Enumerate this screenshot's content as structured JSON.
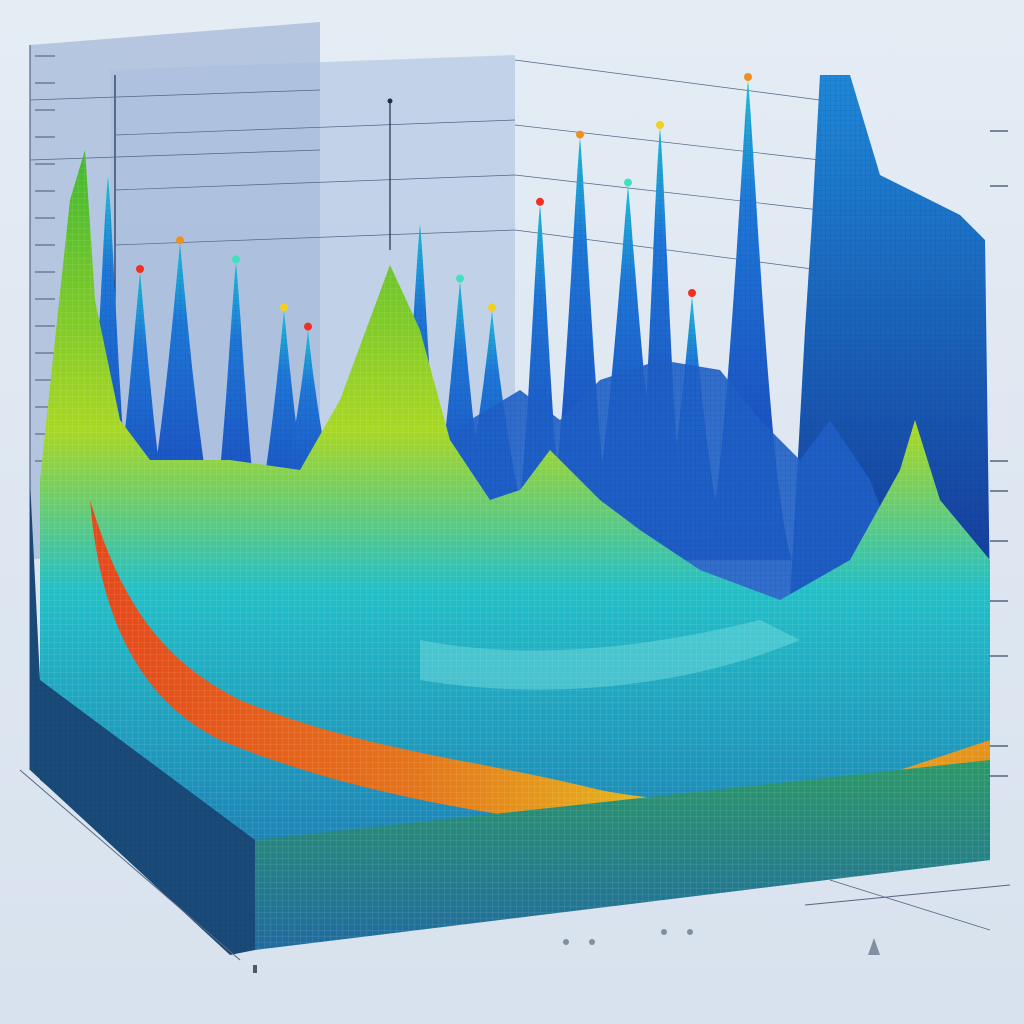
{
  "chart_data": {
    "type": "area",
    "title": "",
    "xlabel": "",
    "ylabel": "",
    "zlabel": "",
    "grid": true,
    "legend": "none",
    "colormap": [
      "#1a3fb8",
      "#1f78d8",
      "#20b8d8",
      "#3fc44a",
      "#c8e020",
      "#f0b010",
      "#f05010"
    ],
    "back_ridge_peaks": [
      {
        "x": 0.06,
        "y": 0.8
      },
      {
        "x": 0.1,
        "y": 0.6
      },
      {
        "x": 0.15,
        "y": 0.66
      },
      {
        "x": 0.22,
        "y": 0.62
      },
      {
        "x": 0.28,
        "y": 0.52
      },
      {
        "x": 0.31,
        "y": 0.48
      },
      {
        "x": 0.45,
        "y": 0.7
      },
      {
        "x": 0.5,
        "y": 0.58
      },
      {
        "x": 0.54,
        "y": 0.52
      },
      {
        "x": 0.6,
        "y": 0.74
      },
      {
        "x": 0.65,
        "y": 0.88
      },
      {
        "x": 0.71,
        "y": 0.78
      },
      {
        "x": 0.75,
        "y": 0.9
      },
      {
        "x": 0.79,
        "y": 0.55
      },
      {
        "x": 0.86,
        "y": 1.0
      }
    ],
    "front_surface_profile": [
      {
        "x": 0.0,
        "y": 0.75
      },
      {
        "x": 0.1,
        "y": 0.45
      },
      {
        "x": 0.25,
        "y": 0.45
      },
      {
        "x": 0.4,
        "y": 0.62
      },
      {
        "x": 0.5,
        "y": 0.45
      },
      {
        "x": 0.6,
        "y": 0.5
      },
      {
        "x": 0.75,
        "y": 0.4
      },
      {
        "x": 0.9,
        "y": 0.3
      },
      {
        "x": 1.0,
        "y": 0.55
      }
    ],
    "marker_colors": [
      "#f0d020",
      "#f03020",
      "#f09020",
      "#40e0c0"
    ]
  }
}
